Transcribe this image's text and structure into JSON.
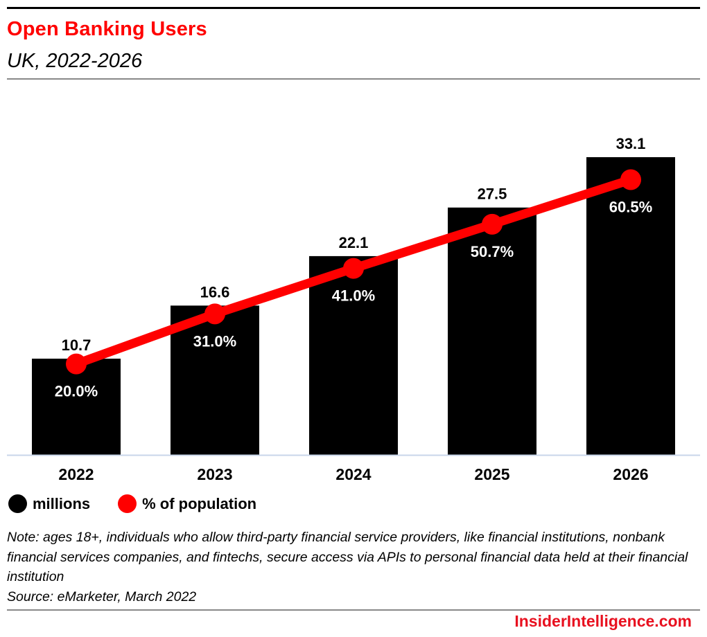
{
  "header": {
    "title": "Open Banking Users",
    "subtitle": "UK, 2022-2026"
  },
  "legend": [
    {
      "label": "millions",
      "color": "#000000"
    },
    {
      "label": "% of population",
      "color": "#ff0000"
    }
  ],
  "footer": {
    "note": "Note: ages 18+, individuals who allow third-party financial service providers, like financial institutions, nonbank financial services companies, and fintechs, secure access via APIs to personal financial data held at their financial institution",
    "source": "Source: eMarketer, March 2022",
    "brand": "InsiderIntelligence.com"
  },
  "colors": {
    "title": "#ff0000",
    "bar": "#000000",
    "line": "#ff0000",
    "brand": "#e8101f"
  },
  "chart_data": {
    "type": "bar",
    "title": "Open Banking Users",
    "subtitle": "UK, 2022-2026",
    "xlabel": "",
    "ylabel": "",
    "categories": [
      "2022",
      "2023",
      "2024",
      "2025",
      "2026"
    ],
    "series": [
      {
        "name": "millions",
        "type": "bar",
        "values": [
          10.7,
          16.6,
          22.1,
          27.5,
          33.1
        ],
        "labels": [
          "10.7",
          "16.6",
          "22.1",
          "27.5",
          "33.1"
        ]
      },
      {
        "name": "% of population",
        "type": "line",
        "values": [
          20.0,
          31.0,
          41.0,
          50.7,
          60.5
        ],
        "labels": [
          "20.0%",
          "31.0%",
          "41.0%",
          "50.7%",
          "60.5%"
        ]
      }
    ],
    "ylim": [
      0,
      51
    ],
    "y2lim": [
      0,
      100
    ],
    "grid": false,
    "legend_position": "bottom-left"
  }
}
